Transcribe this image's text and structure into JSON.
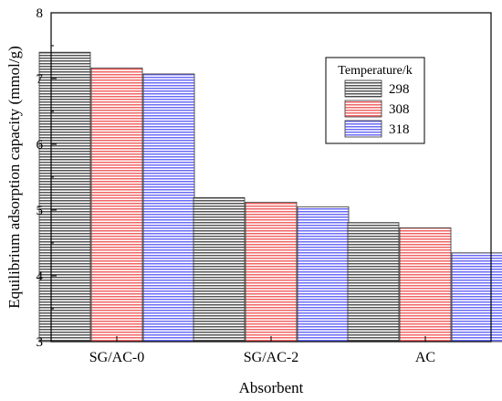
{
  "chart_data": {
    "type": "bar",
    "title": "",
    "xlabel": "Absorbent",
    "ylabel": "Equilibrium adsorption capacity (mmol/g)",
    "categories": [
      "SG/AC-0",
      "SG/AC-2",
      "AC"
    ],
    "ylim": [
      3,
      8
    ],
    "yticks": [
      "3",
      "4",
      "5",
      "6",
      "7",
      "8"
    ],
    "legend_title": "Temperature/k",
    "legend_position": "top-right",
    "grid": false,
    "series": [
      {
        "name": "298",
        "values": [
          7.4,
          5.19,
          4.81
        ],
        "color": "#555555"
      },
      {
        "name": "308",
        "values": [
          7.16,
          5.12,
          4.73
        ],
        "color": "#f06464"
      },
      {
        "name": "318",
        "values": [
          7.07,
          5.05,
          4.35
        ],
        "color": "#6b6bf5"
      }
    ]
  }
}
